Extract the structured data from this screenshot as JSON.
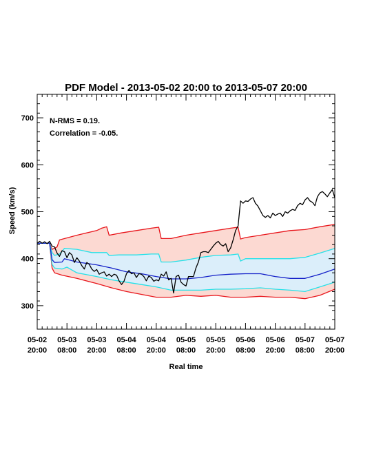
{
  "chart_data": {
    "type": "line",
    "title": "PDF Model - 2013-05-02 20:00 to 2013-05-07 20:00",
    "xlabel": "Real time",
    "ylabel": "Speed (km/s)",
    "annotations": [
      "N-RMS = 0.19.",
      "Correlation = -0.05."
    ],
    "x_unit": "hours since 2013-05-02 20:00",
    "xlim": [
      0,
      120
    ],
    "ylim": [
      250,
      750
    ],
    "yticks": [
      300,
      400,
      500,
      600,
      700
    ],
    "xticks": [
      {
        "x": 0,
        "line1": "05-02",
        "line2": "20:00"
      },
      {
        "x": 12,
        "line1": "05-03",
        "line2": "08:00"
      },
      {
        "x": 24,
        "line1": "05-03",
        "line2": "20:00"
      },
      {
        "x": 36,
        "line1": "05-04",
        "line2": "08:00"
      },
      {
        "x": 48,
        "line1": "05-04",
        "line2": "20:00"
      },
      {
        "x": 60,
        "line1": "05-05",
        "line2": "08:00"
      },
      {
        "x": 72,
        "line1": "05-05",
        "line2": "20:00"
      },
      {
        "x": 84,
        "line1": "05-06",
        "line2": "08:00"
      },
      {
        "x": 96,
        "line1": "05-06",
        "line2": "20:00"
      },
      {
        "x": 108,
        "line1": "05-07",
        "line2": "08:00"
      },
      {
        "x": 120,
        "line1": "05-07",
        "line2": "20:00"
      }
    ],
    "bands": [
      {
        "name": "outer",
        "fill": "#fcd9d2",
        "stroke": "#e8141a",
        "upper": [
          [
            0,
            433
          ],
          [
            5,
            433
          ],
          [
            6,
            420
          ],
          [
            8,
            425
          ],
          [
            9,
            440
          ],
          [
            16,
            450
          ],
          [
            24,
            460
          ],
          [
            26,
            465
          ],
          [
            28,
            468
          ],
          [
            29,
            450
          ],
          [
            34,
            455
          ],
          [
            40,
            460
          ],
          [
            46,
            465
          ],
          [
            49,
            467
          ],
          [
            50,
            443
          ],
          [
            54,
            443
          ],
          [
            60,
            450
          ],
          [
            66,
            455
          ],
          [
            72,
            460
          ],
          [
            78,
            465
          ],
          [
            81,
            467
          ],
          [
            82,
            442
          ],
          [
            84,
            445
          ],
          [
            90,
            450
          ],
          [
            96,
            455
          ],
          [
            102,
            460
          ],
          [
            108,
            462
          ],
          [
            114,
            468
          ],
          [
            120,
            473
          ]
        ],
        "lower": [
          [
            0,
            433
          ],
          [
            5,
            433
          ],
          [
            6,
            380
          ],
          [
            7,
            370
          ],
          [
            10,
            365
          ],
          [
            16,
            358
          ],
          [
            24,
            347
          ],
          [
            30,
            338
          ],
          [
            36,
            330
          ],
          [
            42,
            324
          ],
          [
            48,
            318
          ],
          [
            54,
            318
          ],
          [
            60,
            322
          ],
          [
            66,
            320
          ],
          [
            72,
            322
          ],
          [
            78,
            318
          ],
          [
            84,
            318
          ],
          [
            90,
            320
          ],
          [
            96,
            318
          ],
          [
            102,
            318
          ],
          [
            108,
            315
          ],
          [
            114,
            322
          ],
          [
            120,
            335
          ]
        ]
      },
      {
        "name": "inner",
        "fill": "#dbeefa",
        "stroke": "#24e1e8",
        "upper": [
          [
            0,
            433
          ],
          [
            5,
            433
          ],
          [
            6,
            413
          ],
          [
            7,
            407
          ],
          [
            9,
            410
          ],
          [
            11,
            422
          ],
          [
            16,
            420
          ],
          [
            22,
            413
          ],
          [
            26,
            413
          ],
          [
            28,
            413
          ],
          [
            29,
            407
          ],
          [
            33,
            408
          ],
          [
            40,
            408
          ],
          [
            46,
            410
          ],
          [
            49,
            410
          ],
          [
            50,
            393
          ],
          [
            54,
            393
          ],
          [
            60,
            397
          ],
          [
            66,
            403
          ],
          [
            72,
            407
          ],
          [
            78,
            408
          ],
          [
            81,
            410
          ],
          [
            82,
            395
          ],
          [
            84,
            400
          ],
          [
            90,
            400
          ],
          [
            96,
            400
          ],
          [
            102,
            400
          ],
          [
            108,
            403
          ],
          [
            114,
            412
          ],
          [
            120,
            422
          ]
        ],
        "lower": [
          [
            0,
            433
          ],
          [
            5,
            433
          ],
          [
            6,
            388
          ],
          [
            7,
            380
          ],
          [
            10,
            378
          ],
          [
            12,
            382
          ],
          [
            16,
            370
          ],
          [
            24,
            362
          ],
          [
            30,
            355
          ],
          [
            36,
            350
          ],
          [
            42,
            345
          ],
          [
            48,
            340
          ],
          [
            54,
            333
          ],
          [
            60,
            333
          ],
          [
            66,
            333
          ],
          [
            72,
            335
          ],
          [
            78,
            335
          ],
          [
            84,
            336
          ],
          [
            90,
            338
          ],
          [
            96,
            335
          ],
          [
            102,
            333
          ],
          [
            108,
            330
          ],
          [
            114,
            340
          ],
          [
            120,
            350
          ]
        ]
      }
    ],
    "series": [
      {
        "name": "median",
        "color": "#1420c8",
        "points": [
          [
            0,
            433
          ],
          [
            5,
            433
          ],
          [
            6,
            398
          ],
          [
            7,
            392
          ],
          [
            10,
            393
          ],
          [
            11,
            400
          ],
          [
            16,
            393
          ],
          [
            24,
            387
          ],
          [
            30,
            380
          ],
          [
            36,
            372
          ],
          [
            42,
            368
          ],
          [
            48,
            362
          ],
          [
            54,
            357
          ],
          [
            60,
            357
          ],
          [
            66,
            360
          ],
          [
            72,
            365
          ],
          [
            78,
            367
          ],
          [
            84,
            368
          ],
          [
            90,
            368
          ],
          [
            96,
            362
          ],
          [
            102,
            358
          ],
          [
            108,
            358
          ],
          [
            114,
            367
          ],
          [
            120,
            378
          ]
        ]
      },
      {
        "name": "observed",
        "color": "#000000",
        "points": [
          [
            0,
            433
          ],
          [
            1,
            437
          ],
          [
            2,
            433
          ],
          [
            3,
            436
          ],
          [
            4,
            432
          ],
          [
            5,
            437
          ],
          [
            6,
            427
          ],
          [
            7,
            425
          ],
          [
            8,
            412
          ],
          [
            9,
            405
          ],
          [
            10,
            417
          ],
          [
            11,
            415
          ],
          [
            12,
            402
          ],
          [
            13,
            413
          ],
          [
            14,
            408
          ],
          [
            15,
            392
          ],
          [
            16,
            402
          ],
          [
            17,
            395
          ],
          [
            18,
            385
          ],
          [
            19,
            378
          ],
          [
            20,
            392
          ],
          [
            21,
            388
          ],
          [
            22,
            378
          ],
          [
            23,
            373
          ],
          [
            24,
            377
          ],
          [
            25,
            367
          ],
          [
            26,
            370
          ],
          [
            27,
            372
          ],
          [
            28,
            363
          ],
          [
            29,
            367
          ],
          [
            30,
            362
          ],
          [
            31,
            367
          ],
          [
            32,
            365
          ],
          [
            33,
            353
          ],
          [
            34,
            345
          ],
          [
            35,
            352
          ],
          [
            36,
            368
          ],
          [
            37,
            375
          ],
          [
            38,
            368
          ],
          [
            39,
            370
          ],
          [
            40,
            360
          ],
          [
            41,
            368
          ],
          [
            42,
            367
          ],
          [
            43,
            362
          ],
          [
            44,
            353
          ],
          [
            45,
            363
          ],
          [
            46,
            360
          ],
          [
            47,
            352
          ],
          [
            48,
            355
          ],
          [
            49,
            353
          ],
          [
            50,
            367
          ],
          [
            51,
            363
          ],
          [
            52,
            372
          ],
          [
            53,
            355
          ],
          [
            54,
            358
          ],
          [
            55,
            327
          ],
          [
            56,
            362
          ],
          [
            57,
            365
          ],
          [
            58,
            350
          ],
          [
            59,
            345
          ],
          [
            60,
            342
          ],
          [
            61,
            362
          ],
          [
            62,
            362
          ],
          [
            63,
            362
          ],
          [
            64,
            380
          ],
          [
            65,
            393
          ],
          [
            66,
            413
          ],
          [
            67,
            415
          ],
          [
            68,
            415
          ],
          [
            69,
            413
          ],
          [
            70,
            420
          ],
          [
            71,
            427
          ],
          [
            72,
            433
          ],
          [
            73,
            437
          ],
          [
            74,
            430
          ],
          [
            75,
            427
          ],
          [
            76,
            432
          ],
          [
            77,
            415
          ],
          [
            78,
            423
          ],
          [
            79,
            440
          ],
          [
            80,
            460
          ],
          [
            81,
            470
          ],
          [
            82,
            523
          ],
          [
            83,
            518
          ],
          [
            84,
            523
          ],
          [
            85,
            522
          ],
          [
            86,
            527
          ],
          [
            87,
            530
          ],
          [
            88,
            518
          ],
          [
            89,
            512
          ],
          [
            90,
            502
          ],
          [
            91,
            492
          ],
          [
            92,
            488
          ],
          [
            93,
            492
          ],
          [
            94,
            487
          ],
          [
            95,
            497
          ],
          [
            96,
            492
          ],
          [
            97,
            495
          ],
          [
            98,
            497
          ],
          [
            99,
            490
          ],
          [
            100,
            500
          ],
          [
            101,
            497
          ],
          [
            102,
            502
          ],
          [
            103,
            505
          ],
          [
            104,
            503
          ],
          [
            105,
            513
          ],
          [
            106,
            518
          ],
          [
            107,
            515
          ],
          [
            108,
            525
          ],
          [
            109,
            530
          ],
          [
            110,
            523
          ],
          [
            111,
            520
          ],
          [
            112,
            513
          ],
          [
            113,
            532
          ],
          [
            114,
            540
          ],
          [
            115,
            543
          ],
          [
            116,
            538
          ],
          [
            117,
            532
          ],
          [
            118,
            540
          ],
          [
            119,
            547
          ],
          [
            120,
            530
          ]
        ]
      }
    ]
  }
}
